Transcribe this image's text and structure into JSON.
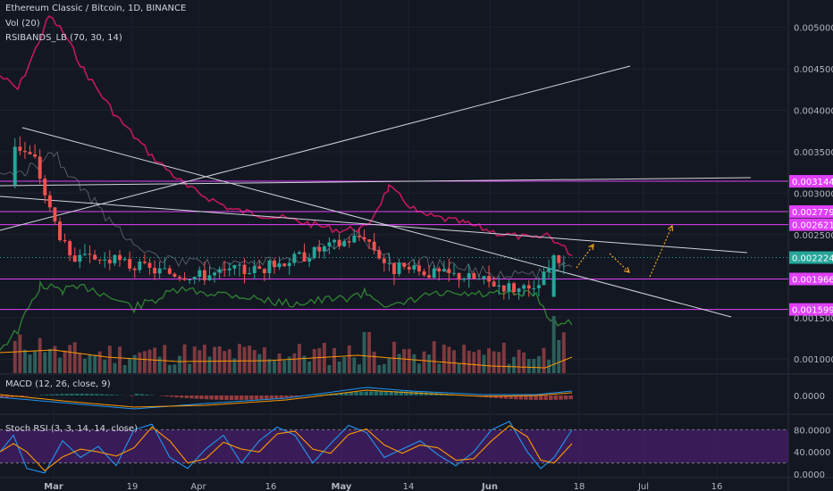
{
  "header": {
    "title": "Ethereum Classic / Bitcoin, 1D, BINANCE",
    "vol_label": "Vol (20)",
    "rsiband_label": "RSIBANDS_LB (70, 30, 14)"
  },
  "macd": {
    "label": "MACD (12, 26, close, 9)"
  },
  "stoch": {
    "label": "Stoch RSI (3, 3, 14, 14, close)"
  },
  "colors": {
    "background": "#131722",
    "bull": "#26a69a",
    "bear": "#ef5350",
    "magenta_level": "#e040fb",
    "rsi_band_upper": "#c2185b",
    "rsi_band_lower": "#2e7d32",
    "stoch_fill": "#4a1f6e"
  },
  "chart_data": [
    {
      "type": "candlestick",
      "title": "Ethereum Classic / Bitcoin, 1D, BINANCE",
      "x_ticks": [
        "Mar",
        "19",
        "Apr",
        "16",
        "May",
        "14",
        "Jun",
        "18",
        "Jul",
        "16"
      ],
      "y_ticks": [
        "0.005000",
        "0.004500",
        "0.004000",
        "0.003500",
        "0.003000",
        "0.002500",
        "0.002000",
        "0.001500",
        "0.001000"
      ],
      "ylim": [
        0.00083,
        0.00533
      ],
      "horizontal_levels": [
        {
          "value": 0.003144,
          "label": "0.003144"
        },
        {
          "value": 0.002779,
          "label": "0.002779"
        },
        {
          "value": 0.002621,
          "label": "0.002621"
        },
        {
          "value": 0.001966,
          "label": "0.001966"
        },
        {
          "value": 0.001599,
          "label": "0.001599"
        }
      ],
      "last_price": {
        "value": 0.002224,
        "label": "0.002224"
      },
      "ohlc_samples": [
        [
          "2018-02-24",
          0.0031,
          0.0037,
          0.0031,
          0.0036
        ],
        [
          "2018-02-28",
          0.0038,
          0.0038,
          0.0033,
          0.0034
        ],
        [
          "2018-03-03",
          0.0031,
          0.0032,
          0.0027,
          0.0028
        ],
        [
          "2018-03-07",
          0.0025,
          0.0026,
          0.0021,
          0.0022
        ],
        [
          "2018-03-15",
          0.0021,
          0.0024,
          0.002,
          0.0022
        ],
        [
          "2018-03-21",
          0.0022,
          0.0023,
          0.002,
          0.0021
        ],
        [
          "2018-04-01",
          0.002,
          0.0021,
          0.0019,
          0.002
        ],
        [
          "2018-04-15",
          0.002,
          0.0022,
          0.0019,
          0.0021
        ],
        [
          "2018-04-25",
          0.0022,
          0.0024,
          0.0021,
          0.0023
        ],
        [
          "2018-05-05",
          0.0024,
          0.0026,
          0.0023,
          0.0025
        ],
        [
          "2018-05-10",
          0.0022,
          0.0023,
          0.002,
          0.0021
        ],
        [
          "2018-05-25",
          0.002,
          0.0021,
          0.0019,
          0.002
        ],
        [
          "2018-06-08",
          0.0019,
          0.002,
          0.0018,
          0.0018
        ],
        [
          "2018-06-12",
          0.0018,
          0.0023,
          0.0017,
          0.0022
        ],
        [
          "2018-06-15",
          0.0021,
          0.0023,
          0.0021,
          0.0022
        ]
      ]
    },
    {
      "type": "line",
      "title": "MACD (12, 26, close, 9)",
      "y_ticks": [
        "0.0000"
      ]
    },
    {
      "type": "line",
      "title": "Stoch RSI (3, 3, 14, 14, close)",
      "y_ticks": [
        "80.0000",
        "40.0000",
        "0.0000"
      ],
      "ylim": [
        0,
        100
      ],
      "band": [
        20,
        80
      ]
    }
  ]
}
